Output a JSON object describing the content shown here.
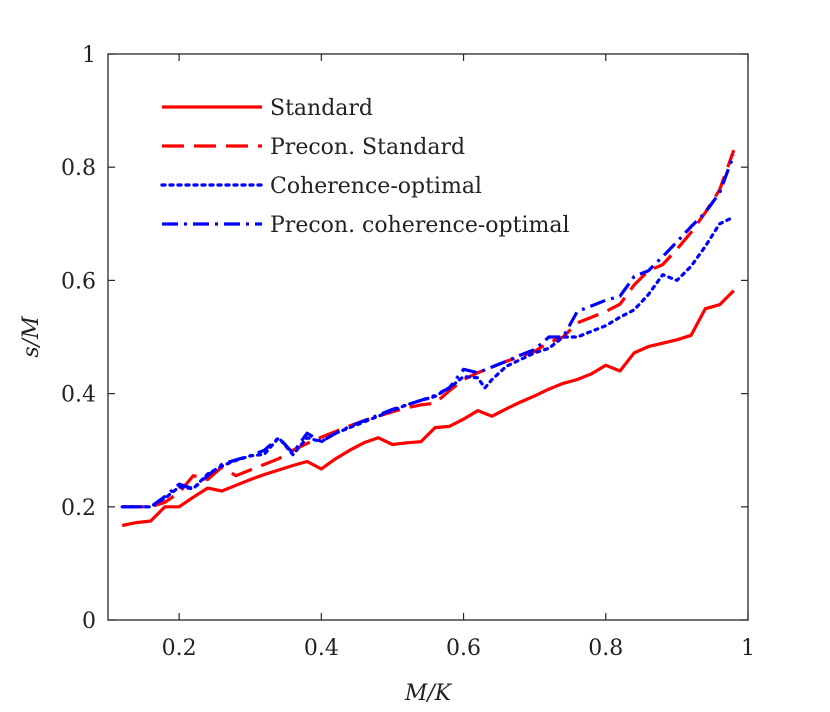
{
  "chart_data": {
    "type": "line",
    "title": "",
    "xlabel": "M/K",
    "ylabel": "s/M",
    "xlim": [
      0.1,
      1.0
    ],
    "ylim": [
      0,
      1
    ],
    "xticks": [
      0.2,
      0.4,
      0.6,
      0.8,
      1
    ],
    "xtick_labels": [
      "0.2",
      "0.4",
      "0.6",
      "0.8",
      "1"
    ],
    "yticks": [
      0,
      0.2,
      0.4,
      0.6,
      0.8,
      1
    ],
    "ytick_labels": [
      "0",
      "0.2",
      "0.4",
      "0.6",
      "0.8",
      "1"
    ],
    "grid": false,
    "legend_position": "top-left",
    "series": [
      {
        "name": "Standard",
        "color": "#ff0000",
        "style": "solid",
        "x": [
          0.12,
          0.14,
          0.16,
          0.18,
          0.2,
          0.22,
          0.24,
          0.26,
          0.28,
          0.3,
          0.32,
          0.34,
          0.36,
          0.38,
          0.4,
          0.42,
          0.44,
          0.46,
          0.48,
          0.5,
          0.52,
          0.54,
          0.56,
          0.58,
          0.6,
          0.62,
          0.64,
          0.66,
          0.68,
          0.7,
          0.72,
          0.74,
          0.76,
          0.78,
          0.8,
          0.82,
          0.84,
          0.86,
          0.88,
          0.9,
          0.92,
          0.94,
          0.96,
          0.98
        ],
        "values": [
          0.167,
          0.172,
          0.175,
          0.2,
          0.2,
          0.217,
          0.233,
          0.228,
          0.238,
          0.248,
          0.257,
          0.265,
          0.273,
          0.28,
          0.267,
          0.285,
          0.3,
          0.313,
          0.322,
          0.31,
          0.313,
          0.315,
          0.34,
          0.342,
          0.355,
          0.37,
          0.36,
          0.373,
          0.385,
          0.396,
          0.408,
          0.418,
          0.425,
          0.435,
          0.45,
          0.44,
          0.472,
          0.483,
          0.489,
          0.495,
          0.503,
          0.55,
          0.557,
          0.582
        ]
      },
      {
        "name": "Precon. Standard",
        "color": "#ff0000",
        "style": "dashed",
        "x": [
          0.12,
          0.14,
          0.16,
          0.18,
          0.2,
          0.22,
          0.24,
          0.26,
          0.28,
          0.3,
          0.32,
          0.34,
          0.36,
          0.38,
          0.4,
          0.42,
          0.44,
          0.46,
          0.48,
          0.5,
          0.52,
          0.54,
          0.56,
          0.58,
          0.6,
          0.62,
          0.64,
          0.66,
          0.68,
          0.7,
          0.72,
          0.74,
          0.76,
          0.78,
          0.8,
          0.82,
          0.84,
          0.86,
          0.88,
          0.9,
          0.92,
          0.94,
          0.96,
          0.98
        ],
        "values": [
          0.2,
          0.2,
          0.2,
          0.208,
          0.225,
          0.255,
          0.248,
          0.27,
          0.255,
          0.265,
          0.275,
          0.285,
          0.3,
          0.312,
          0.323,
          0.333,
          0.343,
          0.352,
          0.36,
          0.368,
          0.375,
          0.38,
          0.383,
          0.405,
          0.425,
          0.437,
          0.447,
          0.457,
          0.465,
          0.475,
          0.49,
          0.5,
          0.525,
          0.535,
          0.545,
          0.558,
          0.592,
          0.617,
          0.628,
          0.655,
          0.685,
          0.72,
          0.76,
          0.83
        ]
      },
      {
        "name": "Coherence-optimal",
        "color": "#0000ff",
        "style": "dotted",
        "x": [
          0.12,
          0.14,
          0.16,
          0.18,
          0.2,
          0.22,
          0.24,
          0.26,
          0.28,
          0.3,
          0.32,
          0.34,
          0.36,
          0.38,
          0.4,
          0.42,
          0.44,
          0.46,
          0.48,
          0.5,
          0.52,
          0.54,
          0.56,
          0.58,
          0.6,
          0.62,
          0.63,
          0.64,
          0.66,
          0.68,
          0.7,
          0.72,
          0.74,
          0.76,
          0.78,
          0.8,
          0.82,
          0.84,
          0.86,
          0.88,
          0.9,
          0.92,
          0.94,
          0.96,
          0.98
        ],
        "values": [
          0.2,
          0.2,
          0.2,
          0.215,
          0.235,
          0.232,
          0.258,
          0.272,
          0.282,
          0.29,
          0.293,
          0.322,
          0.292,
          0.322,
          0.315,
          0.33,
          0.34,
          0.35,
          0.36,
          0.37,
          0.38,
          0.388,
          0.395,
          0.41,
          0.43,
          0.428,
          0.41,
          0.425,
          0.448,
          0.46,
          0.472,
          0.48,
          0.5,
          0.5,
          0.51,
          0.52,
          0.535,
          0.548,
          0.575,
          0.61,
          0.6,
          0.625,
          0.66,
          0.7,
          0.712
        ]
      },
      {
        "name": "Precon. coherence-optimal",
        "color": "#0000ff",
        "style": "dashdot",
        "x": [
          0.12,
          0.14,
          0.16,
          0.18,
          0.2,
          0.22,
          0.24,
          0.26,
          0.28,
          0.3,
          0.32,
          0.34,
          0.36,
          0.38,
          0.4,
          0.42,
          0.44,
          0.46,
          0.48,
          0.5,
          0.52,
          0.54,
          0.56,
          0.58,
          0.6,
          0.62,
          0.64,
          0.66,
          0.68,
          0.7,
          0.72,
          0.74,
          0.76,
          0.78,
          0.8,
          0.82,
          0.84,
          0.86,
          0.88,
          0.9,
          0.92,
          0.94,
          0.96,
          0.98
        ],
        "values": [
          0.2,
          0.2,
          0.2,
          0.218,
          0.24,
          0.232,
          0.255,
          0.275,
          0.283,
          0.29,
          0.3,
          0.322,
          0.295,
          0.33,
          0.315,
          0.33,
          0.342,
          0.352,
          0.362,
          0.372,
          0.38,
          0.388,
          0.397,
          0.41,
          0.443,
          0.437,
          0.447,
          0.457,
          0.468,
          0.478,
          0.5,
          0.5,
          0.545,
          0.555,
          0.565,
          0.572,
          0.607,
          0.617,
          0.642,
          0.668,
          0.695,
          0.72,
          0.755,
          0.822
        ]
      }
    ]
  }
}
